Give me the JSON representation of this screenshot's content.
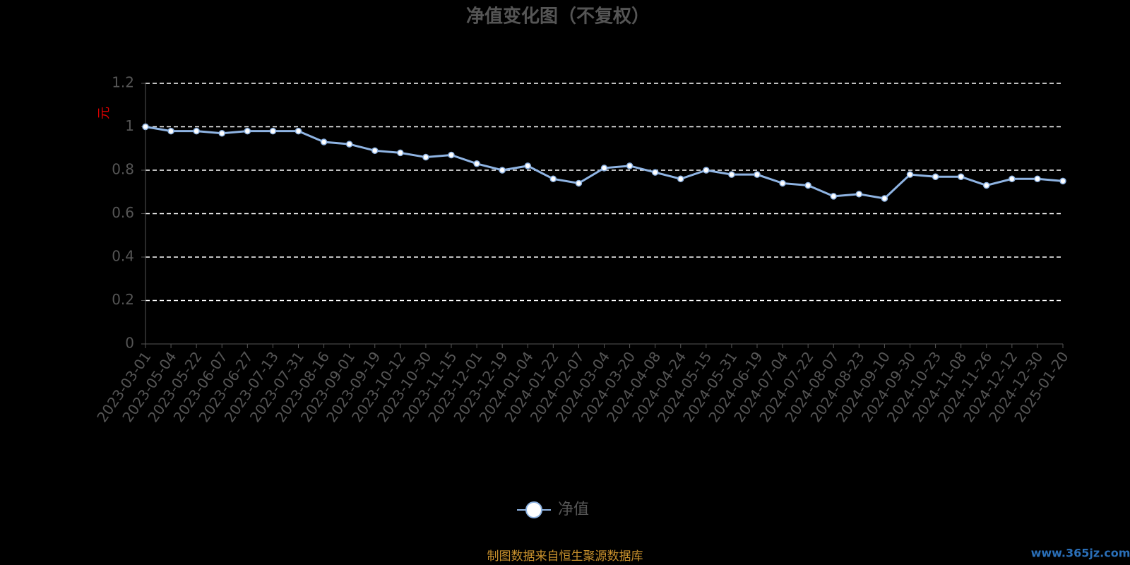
{
  "chart_data": {
    "type": "line",
    "title": "净值变化图（不复权）",
    "y_label": "元",
    "categories": [
      "2023-03-01",
      "2023-05-04",
      "2023-05-22",
      "2023-06-07",
      "2023-06-27",
      "2023-07-13",
      "2023-07-31",
      "2023-08-16",
      "2023-09-01",
      "2023-09-19",
      "2023-10-12",
      "2023-10-30",
      "2023-11-15",
      "2023-12-01",
      "2023-12-19",
      "2024-01-04",
      "2024-01-22",
      "2024-02-07",
      "2024-03-04",
      "2024-03-20",
      "2024-04-08",
      "2024-04-24",
      "2024-05-15",
      "2024-05-31",
      "2024-06-19",
      "2024-07-04",
      "2024-07-22",
      "2024-08-07",
      "2024-08-23",
      "2024-09-10",
      "2024-09-30",
      "2024-10-23",
      "2024-11-08",
      "2024-11-26",
      "2024-12-12",
      "2024-12-30",
      "2025-01-20"
    ],
    "series": [
      {
        "name": "净值",
        "color": "#8fb4e3",
        "values": [
          1.0,
          0.98,
          0.98,
          0.97,
          0.98,
          0.98,
          0.98,
          0.93,
          0.92,
          0.89,
          0.88,
          0.86,
          0.87,
          0.83,
          0.8,
          0.82,
          0.76,
          0.74,
          0.81,
          0.82,
          0.79,
          0.76,
          0.8,
          0.78,
          0.78,
          0.74,
          0.73,
          0.68,
          0.69,
          0.67,
          0.78,
          0.77,
          0.77,
          0.73,
          0.76,
          0.76,
          0.75
        ]
      }
    ],
    "ylim": [
      0,
      1.2
    ],
    "yticks": [
      0,
      0.2,
      0.4,
      0.6,
      0.8,
      1,
      1.2
    ],
    "grid": true
  },
  "source": "制图数据来自恒生聚源数据库",
  "watermark": "www.365jz.com"
}
